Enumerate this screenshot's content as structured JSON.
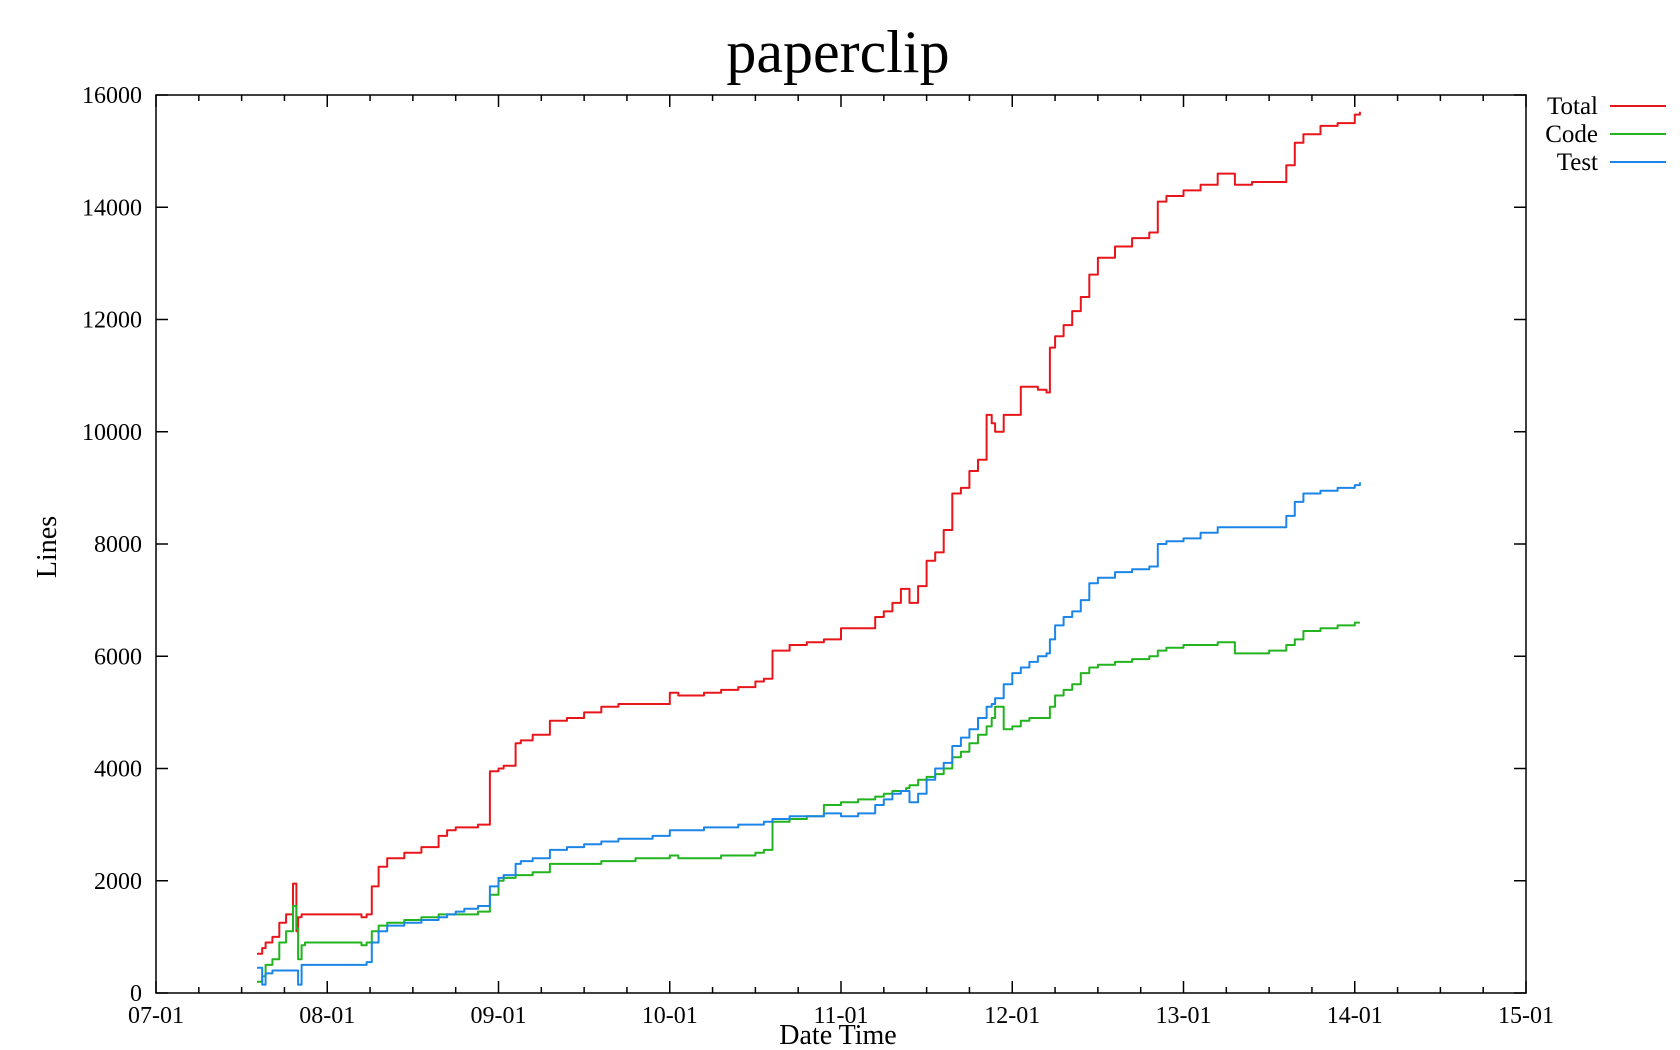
{
  "chart_data": {
    "type": "line",
    "title": "paperclip",
    "xlabel": "Date Time",
    "ylabel": "Lines",
    "x_ticks": [
      "07-01",
      "08-01",
      "09-01",
      "10-01",
      "11-01",
      "12-01",
      "13-01",
      "14-01",
      "15-01"
    ],
    "xlim": [
      "07-01",
      "15-01"
    ],
    "y_ticks": [
      0,
      2000,
      4000,
      6000,
      8000,
      10000,
      12000,
      14000,
      16000
    ],
    "ylim": [
      0,
      16000
    ],
    "grid": false,
    "legend_position": "top-right outside",
    "series": [
      {
        "name": "Total",
        "color": "#e8161b",
        "points": [
          [
            "07-01",
            null
          ]
        ],
        "x": [
          7.59,
          7.62,
          7.64,
          7.68,
          7.72,
          7.76,
          7.8,
          7.82,
          7.83,
          7.85,
          7.87,
          7.9,
          7.95,
          8.0,
          8.05,
          8.1,
          8.2,
          8.23,
          8.26,
          8.3,
          8.35,
          8.45,
          8.55,
          8.65,
          8.7,
          8.75,
          8.8,
          8.88,
          8.95,
          9.0,
          9.03,
          9.1,
          9.13,
          9.2,
          9.3,
          9.4,
          9.5,
          9.6,
          9.7,
          9.8,
          9.9,
          10.0,
          10.05,
          10.1,
          10.2,
          10.3,
          10.4,
          10.5,
          10.55,
          10.6,
          10.7,
          10.8,
          10.9,
          11.0,
          11.1,
          11.2,
          11.25,
          11.3,
          11.35,
          11.38,
          11.4,
          11.45,
          11.5,
          11.55,
          11.6,
          11.65,
          11.7,
          11.75,
          11.8,
          11.85,
          11.88,
          11.9,
          11.95,
          12.0,
          12.05,
          12.1,
          12.15,
          12.2,
          12.22,
          12.25,
          12.3,
          12.35,
          12.4,
          12.45,
          12.5,
          12.6,
          12.7,
          12.8,
          12.85,
          12.9,
          13.0,
          13.1,
          13.2,
          13.3,
          13.4,
          13.5,
          13.6,
          13.65,
          13.7,
          13.8,
          13.9,
          14.0,
          14.03
        ],
        "values": [
          700,
          800,
          900,
          1000,
          1250,
          1400,
          1950,
          1100,
          1350,
          1400,
          1400,
          1400,
          1400,
          1400,
          1400,
          1400,
          1350,
          1400,
          1900,
          2250,
          2400,
          2500,
          2600,
          2800,
          2900,
          2950,
          2950,
          3000,
          3950,
          4000,
          4050,
          4450,
          4500,
          4600,
          4850,
          4900,
          5000,
          5100,
          5150,
          5150,
          5150,
          5350,
          5300,
          5300,
          5350,
          5400,
          5450,
          5550,
          5600,
          6100,
          6200,
          6250,
          6300,
          6500,
          6500,
          6700,
          6800,
          6950,
          7200,
          7200,
          6950,
          7250,
          7700,
          7850,
          8250,
          8900,
          9000,
          9300,
          9500,
          10300,
          10150,
          10000,
          10300,
          10300,
          10800,
          10800,
          10750,
          10700,
          11500,
          11700,
          11900,
          12150,
          12400,
          12800,
          13100,
          13300,
          13450,
          13550,
          14100,
          14200,
          14300,
          14400,
          14600,
          14400,
          14450,
          14450,
          14750,
          15150,
          15300,
          15450,
          15500,
          15650,
          15700
        ]
      },
      {
        "name": "Code",
        "color": "#21b41e",
        "x": [
          7.59,
          7.62,
          7.64,
          7.68,
          7.72,
          7.76,
          7.8,
          7.82,
          7.83,
          7.85,
          7.87,
          7.9,
          7.95,
          8.0,
          8.05,
          8.1,
          8.2,
          8.23,
          8.26,
          8.3,
          8.35,
          8.45,
          8.55,
          8.65,
          8.7,
          8.75,
          8.8,
          8.88,
          8.95,
          9.0,
          9.03,
          9.1,
          9.13,
          9.2,
          9.3,
          9.4,
          9.5,
          9.6,
          9.7,
          9.8,
          9.9,
          10.0,
          10.05,
          10.1,
          10.2,
          10.3,
          10.4,
          10.5,
          10.55,
          10.6,
          10.7,
          10.8,
          10.9,
          11.0,
          11.1,
          11.2,
          11.25,
          11.3,
          11.35,
          11.38,
          11.4,
          11.45,
          11.5,
          11.55,
          11.6,
          11.65,
          11.7,
          11.75,
          11.8,
          11.85,
          11.88,
          11.9,
          11.95,
          12.0,
          12.05,
          12.1,
          12.15,
          12.2,
          12.22,
          12.25,
          12.3,
          12.35,
          12.4,
          12.45,
          12.5,
          12.6,
          12.7,
          12.8,
          12.85,
          12.9,
          13.0,
          13.1,
          13.2,
          13.3,
          13.4,
          13.5,
          13.6,
          13.65,
          13.7,
          13.8,
          13.9,
          14.0,
          14.03
        ],
        "values": [
          200,
          300,
          500,
          600,
          900,
          1100,
          1550,
          1150,
          600,
          850,
          900,
          900,
          900,
          900,
          900,
          900,
          850,
          900,
          1100,
          1200,
          1250,
          1300,
          1350,
          1400,
          1400,
          1400,
          1400,
          1450,
          1750,
          2000,
          2050,
          2100,
          2100,
          2150,
          2300,
          2300,
          2300,
          2350,
          2350,
          2400,
          2400,
          2450,
          2400,
          2400,
          2400,
          2450,
          2450,
          2500,
          2550,
          3050,
          3100,
          3150,
          3350,
          3400,
          3450,
          3500,
          3550,
          3600,
          3600,
          3650,
          3700,
          3800,
          3850,
          3900,
          4000,
          4200,
          4300,
          4450,
          4600,
          4750,
          4900,
          5100,
          4700,
          4750,
          4850,
          4900,
          4900,
          4900,
          5100,
          5300,
          5400,
          5500,
          5700,
          5800,
          5850,
          5900,
          5950,
          6000,
          6100,
          6150,
          6200,
          6200,
          6250,
          6050,
          6050,
          6100,
          6200,
          6300,
          6450,
          6500,
          6550,
          6600,
          6600
        ]
      },
      {
        "name": "Test",
        "color": "#1c86e8",
        "x": [
          7.59,
          7.62,
          7.64,
          7.68,
          7.72,
          7.76,
          7.8,
          7.82,
          7.83,
          7.85,
          7.87,
          7.9,
          7.95,
          8.0,
          8.05,
          8.1,
          8.2,
          8.23,
          8.26,
          8.3,
          8.35,
          8.45,
          8.55,
          8.65,
          8.7,
          8.75,
          8.8,
          8.88,
          8.95,
          9.0,
          9.03,
          9.1,
          9.13,
          9.2,
          9.3,
          9.4,
          9.5,
          9.6,
          9.7,
          9.8,
          9.9,
          10.0,
          10.05,
          10.1,
          10.2,
          10.3,
          10.4,
          10.5,
          10.55,
          10.6,
          10.7,
          10.8,
          10.9,
          11.0,
          11.1,
          11.2,
          11.25,
          11.3,
          11.35,
          11.38,
          11.4,
          11.45,
          11.5,
          11.55,
          11.6,
          11.65,
          11.7,
          11.75,
          11.8,
          11.85,
          11.88,
          11.9,
          11.95,
          12.0,
          12.05,
          12.1,
          12.15,
          12.2,
          12.22,
          12.25,
          12.3,
          12.35,
          12.4,
          12.45,
          12.5,
          12.6,
          12.7,
          12.8,
          12.85,
          12.9,
          13.0,
          13.1,
          13.2,
          13.3,
          13.4,
          13.5,
          13.6,
          13.65,
          13.7,
          13.8,
          13.9,
          14.0,
          14.03
        ],
        "values": [
          450,
          150,
          350,
          400,
          400,
          400,
          400,
          400,
          150,
          500,
          500,
          500,
          500,
          500,
          500,
          500,
          500,
          550,
          900,
          1100,
          1200,
          1250,
          1300,
          1350,
          1400,
          1450,
          1500,
          1550,
          1900,
          2050,
          2100,
          2300,
          2350,
          2400,
          2550,
          2600,
          2650,
          2700,
          2750,
          2750,
          2800,
          2900,
          2900,
          2900,
          2950,
          2950,
          3000,
          3000,
          3050,
          3100,
          3150,
          3150,
          3200,
          3150,
          3200,
          3350,
          3450,
          3550,
          3600,
          3600,
          3400,
          3550,
          3800,
          4000,
          4100,
          4400,
          4550,
          4700,
          4900,
          5100,
          5150,
          5250,
          5500,
          5700,
          5800,
          5900,
          6000,
          6050,
          6300,
          6550,
          6700,
          6800,
          7000,
          7300,
          7400,
          7500,
          7550,
          7600,
          8000,
          8050,
          8100,
          8200,
          8300,
          8300,
          8300,
          8300,
          8500,
          8750,
          8900,
          8950,
          9000,
          9050,
          9100
        ]
      }
    ]
  },
  "legend": {
    "items": [
      {
        "label": "Total",
        "color": "#e8161b"
      },
      {
        "label": "Code",
        "color": "#21b41e"
      },
      {
        "label": "Test",
        "color": "#1c86e8"
      }
    ]
  }
}
